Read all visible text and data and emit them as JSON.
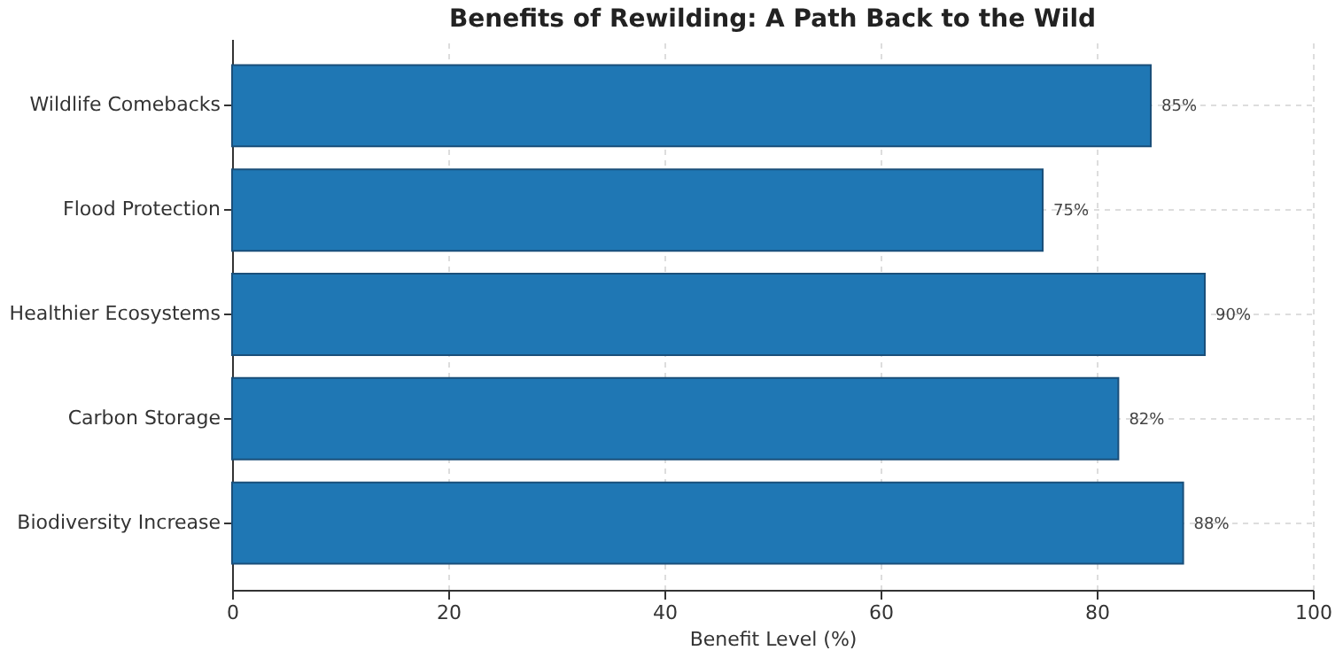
{
  "chart_data": {
    "type": "bar",
    "orientation": "horizontal",
    "title": "Benefits of Rewilding: A Path Back to the Wild",
    "xlabel": "Benefit Level (%)",
    "categories": [
      "Wildlife Comebacks",
      "Flood Protection",
      "Healthier Ecosystems",
      "Carbon Storage",
      "Biodiversity Increase"
    ],
    "values": [
      85,
      75,
      90,
      82,
      88
    ],
    "value_labels": [
      "85%",
      "75%",
      "90%",
      "82%",
      "88%"
    ],
    "color": "#1f77b4",
    "xlim": [
      0,
      100
    ],
    "xticks": [
      0,
      20,
      40,
      60,
      80,
      100
    ],
    "grid": true
  }
}
